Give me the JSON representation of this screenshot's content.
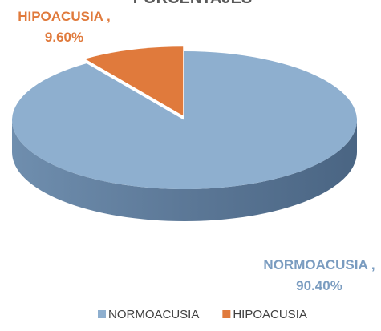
{
  "chart_data": {
    "type": "pie",
    "title": "PORCENTAJES",
    "categories": [
      "NORMOACUSIA",
      "HIPOACUSIA"
    ],
    "values": [
      90.4,
      9.6
    ],
    "value_labels": [
      "NORMOACUSIA , 90.40%",
      "HIPOACUSIA , 9.60%"
    ],
    "colors": [
      "#8eafcf",
      "#e07a3c"
    ],
    "legend": "bottom"
  }
}
